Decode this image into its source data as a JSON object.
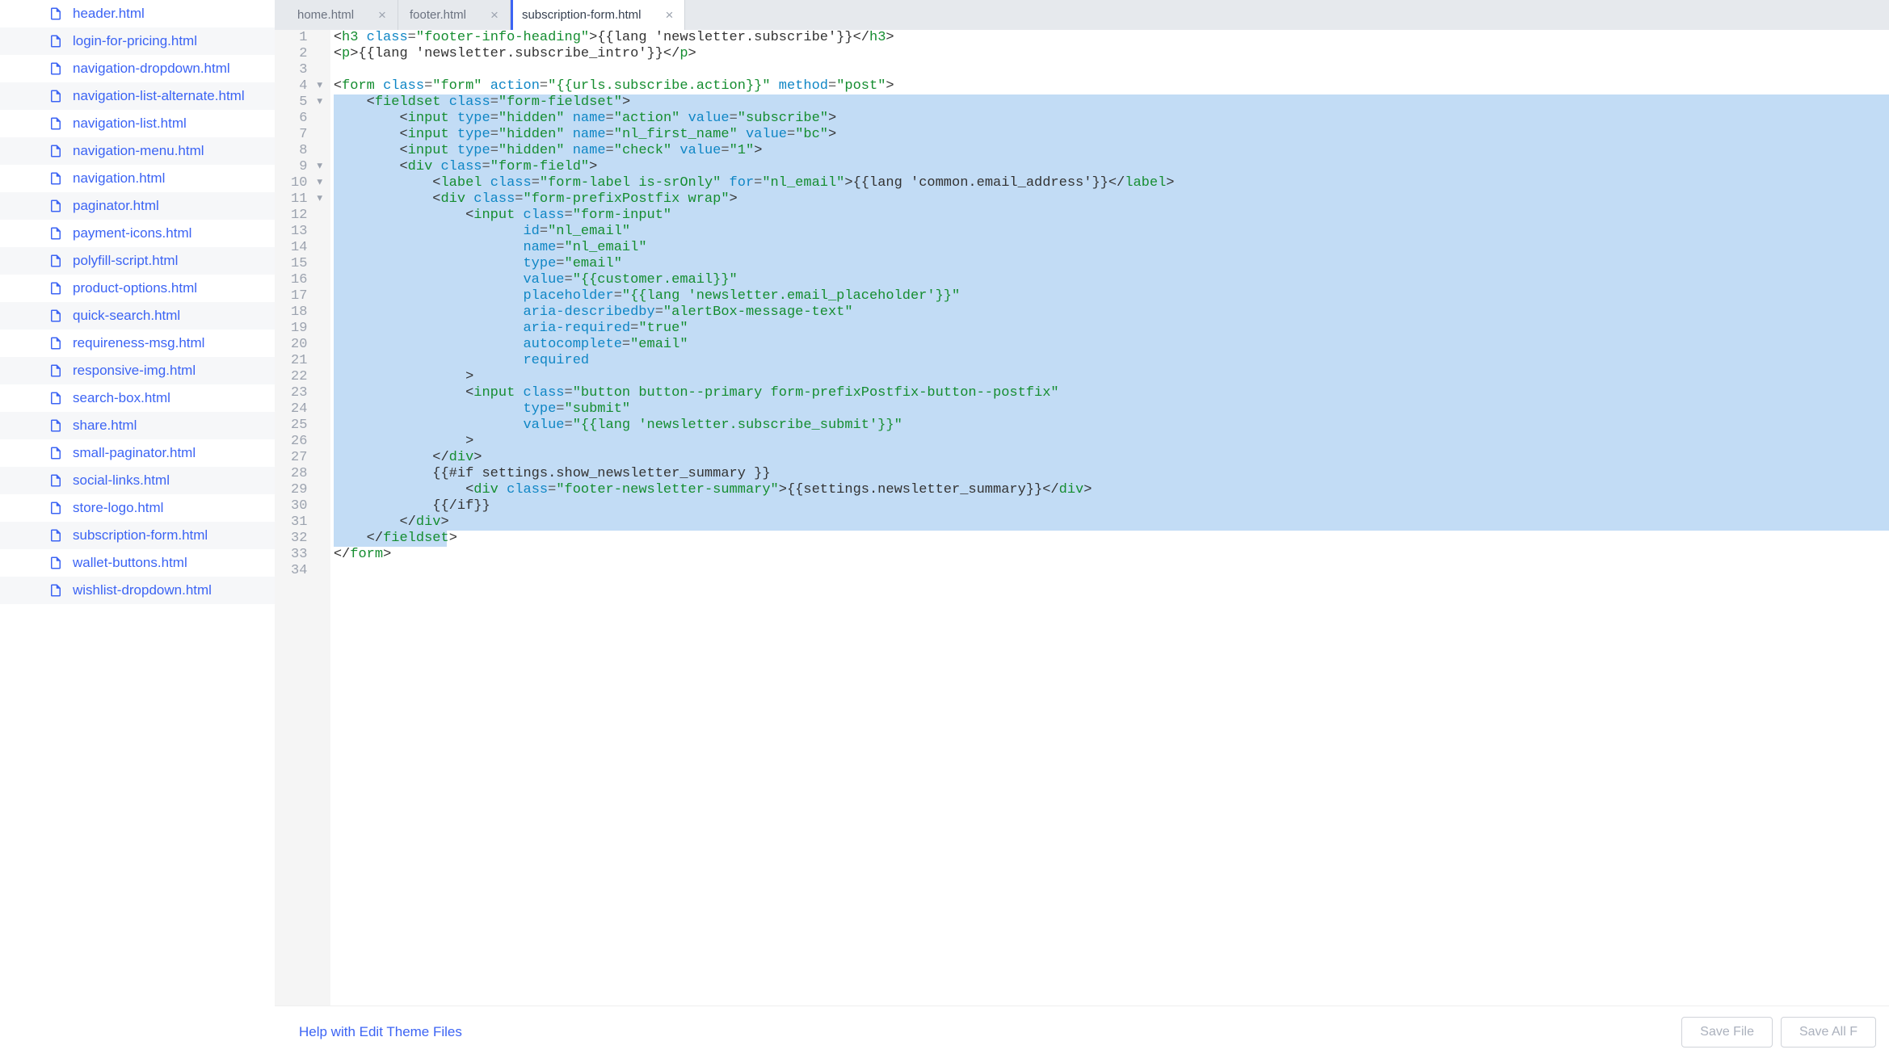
{
  "sidebar": {
    "items": [
      "header.html",
      "login-for-pricing.html",
      "navigation-dropdown.html",
      "navigation-list-alternate.html",
      "navigation-list.html",
      "navigation-menu.html",
      "navigation.html",
      "paginator.html",
      "payment-icons.html",
      "polyfill-script.html",
      "product-options.html",
      "quick-search.html",
      "requireness-msg.html",
      "responsive-img.html",
      "search-box.html",
      "share.html",
      "small-paginator.html",
      "social-links.html",
      "store-logo.html",
      "subscription-form.html",
      "wallet-buttons.html",
      "wishlist-dropdown.html"
    ]
  },
  "tabs": [
    {
      "label": "home.html",
      "active": false
    },
    {
      "label": "footer.html",
      "active": false
    },
    {
      "label": "subscription-form.html",
      "active": true
    }
  ],
  "editor": {
    "highlighted_start": 5,
    "highlighted_end": 32,
    "folds": {
      "4": true,
      "5": true,
      "9": true,
      "10": true,
      "11": true
    },
    "lines": [
      [
        {
          "t": "punct",
          "v": "<"
        },
        {
          "t": "tag",
          "v": "h3"
        },
        {
          "t": "txt",
          "v": " "
        },
        {
          "t": "attr",
          "v": "class"
        },
        {
          "t": "eq",
          "v": "="
        },
        {
          "t": "str",
          "v": "\"footer-info-heading\""
        },
        {
          "t": "punct",
          "v": ">"
        },
        {
          "t": "txt",
          "v": "{{lang 'newsletter.subscribe'}}"
        },
        {
          "t": "punct",
          "v": "</"
        },
        {
          "t": "tag",
          "v": "h3"
        },
        {
          "t": "punct",
          "v": ">"
        }
      ],
      [
        {
          "t": "punct",
          "v": "<"
        },
        {
          "t": "tag",
          "v": "p"
        },
        {
          "t": "punct",
          "v": ">"
        },
        {
          "t": "txt",
          "v": "{{lang 'newsletter.subscribe_intro'}}"
        },
        {
          "t": "punct",
          "v": "</"
        },
        {
          "t": "tag",
          "v": "p"
        },
        {
          "t": "punct",
          "v": ">"
        }
      ],
      [],
      [
        {
          "t": "punct",
          "v": "<"
        },
        {
          "t": "tag",
          "v": "form"
        },
        {
          "t": "txt",
          "v": " "
        },
        {
          "t": "attr",
          "v": "class"
        },
        {
          "t": "eq",
          "v": "="
        },
        {
          "t": "str",
          "v": "\"form\""
        },
        {
          "t": "txt",
          "v": " "
        },
        {
          "t": "attr",
          "v": "action"
        },
        {
          "t": "eq",
          "v": "="
        },
        {
          "t": "str",
          "v": "\"{{urls.subscribe.action}}\""
        },
        {
          "t": "txt",
          "v": " "
        },
        {
          "t": "attr",
          "v": "method"
        },
        {
          "t": "eq",
          "v": "="
        },
        {
          "t": "str",
          "v": "\"post\""
        },
        {
          "t": "punct",
          "v": ">"
        }
      ],
      [
        {
          "t": "txt",
          "v": "    "
        },
        {
          "t": "punct",
          "v": "<"
        },
        {
          "t": "tag",
          "v": "fieldset"
        },
        {
          "t": "txt",
          "v": " "
        },
        {
          "t": "attr",
          "v": "class"
        },
        {
          "t": "eq",
          "v": "="
        },
        {
          "t": "str",
          "v": "\"form-fieldset\""
        },
        {
          "t": "punct",
          "v": ">"
        }
      ],
      [
        {
          "t": "txt",
          "v": "        "
        },
        {
          "t": "punct",
          "v": "<"
        },
        {
          "t": "tag",
          "v": "input"
        },
        {
          "t": "txt",
          "v": " "
        },
        {
          "t": "attr",
          "v": "type"
        },
        {
          "t": "eq",
          "v": "="
        },
        {
          "t": "str",
          "v": "\"hidden\""
        },
        {
          "t": "txt",
          "v": " "
        },
        {
          "t": "attr",
          "v": "name"
        },
        {
          "t": "eq",
          "v": "="
        },
        {
          "t": "str",
          "v": "\"action\""
        },
        {
          "t": "txt",
          "v": " "
        },
        {
          "t": "attr",
          "v": "value"
        },
        {
          "t": "eq",
          "v": "="
        },
        {
          "t": "str",
          "v": "\"subscribe\""
        },
        {
          "t": "punct",
          "v": ">"
        }
      ],
      [
        {
          "t": "txt",
          "v": "        "
        },
        {
          "t": "punct",
          "v": "<"
        },
        {
          "t": "tag",
          "v": "input"
        },
        {
          "t": "txt",
          "v": " "
        },
        {
          "t": "attr",
          "v": "type"
        },
        {
          "t": "eq",
          "v": "="
        },
        {
          "t": "str",
          "v": "\"hidden\""
        },
        {
          "t": "txt",
          "v": " "
        },
        {
          "t": "attr",
          "v": "name"
        },
        {
          "t": "eq",
          "v": "="
        },
        {
          "t": "str",
          "v": "\"nl_first_name\""
        },
        {
          "t": "txt",
          "v": " "
        },
        {
          "t": "attr",
          "v": "value"
        },
        {
          "t": "eq",
          "v": "="
        },
        {
          "t": "str",
          "v": "\"bc\""
        },
        {
          "t": "punct",
          "v": ">"
        }
      ],
      [
        {
          "t": "txt",
          "v": "        "
        },
        {
          "t": "punct",
          "v": "<"
        },
        {
          "t": "tag",
          "v": "input"
        },
        {
          "t": "txt",
          "v": " "
        },
        {
          "t": "attr",
          "v": "type"
        },
        {
          "t": "eq",
          "v": "="
        },
        {
          "t": "str",
          "v": "\"hidden\""
        },
        {
          "t": "txt",
          "v": " "
        },
        {
          "t": "attr",
          "v": "name"
        },
        {
          "t": "eq",
          "v": "="
        },
        {
          "t": "str",
          "v": "\"check\""
        },
        {
          "t": "txt",
          "v": " "
        },
        {
          "t": "attr",
          "v": "value"
        },
        {
          "t": "eq",
          "v": "="
        },
        {
          "t": "str",
          "v": "\"1\""
        },
        {
          "t": "punct",
          "v": ">"
        }
      ],
      [
        {
          "t": "txt",
          "v": "        "
        },
        {
          "t": "punct",
          "v": "<"
        },
        {
          "t": "tag",
          "v": "div"
        },
        {
          "t": "txt",
          "v": " "
        },
        {
          "t": "attr",
          "v": "class"
        },
        {
          "t": "eq",
          "v": "="
        },
        {
          "t": "str",
          "v": "\"form-field\""
        },
        {
          "t": "punct",
          "v": ">"
        }
      ],
      [
        {
          "t": "txt",
          "v": "            "
        },
        {
          "t": "punct",
          "v": "<"
        },
        {
          "t": "tag",
          "v": "label"
        },
        {
          "t": "txt",
          "v": " "
        },
        {
          "t": "attr",
          "v": "class"
        },
        {
          "t": "eq",
          "v": "="
        },
        {
          "t": "str",
          "v": "\"form-label is-srOnly\""
        },
        {
          "t": "txt",
          "v": " "
        },
        {
          "t": "attr",
          "v": "for"
        },
        {
          "t": "eq",
          "v": "="
        },
        {
          "t": "str",
          "v": "\"nl_email\""
        },
        {
          "t": "punct",
          "v": ">"
        },
        {
          "t": "txt",
          "v": "{{lang 'common.email_address'}}"
        },
        {
          "t": "punct",
          "v": "</"
        },
        {
          "t": "tag",
          "v": "label"
        },
        {
          "t": "punct",
          "v": ">"
        }
      ],
      [
        {
          "t": "txt",
          "v": "            "
        },
        {
          "t": "punct",
          "v": "<"
        },
        {
          "t": "tag",
          "v": "div"
        },
        {
          "t": "txt",
          "v": " "
        },
        {
          "t": "attr",
          "v": "class"
        },
        {
          "t": "eq",
          "v": "="
        },
        {
          "t": "str",
          "v": "\"form-prefixPostfix wrap\""
        },
        {
          "t": "punct",
          "v": ">"
        }
      ],
      [
        {
          "t": "txt",
          "v": "                "
        },
        {
          "t": "punct",
          "v": "<"
        },
        {
          "t": "tag",
          "v": "input"
        },
        {
          "t": "txt",
          "v": " "
        },
        {
          "t": "attr",
          "v": "class"
        },
        {
          "t": "eq",
          "v": "="
        },
        {
          "t": "str",
          "v": "\"form-input\""
        }
      ],
      [
        {
          "t": "txt",
          "v": "                       "
        },
        {
          "t": "attr",
          "v": "id"
        },
        {
          "t": "eq",
          "v": "="
        },
        {
          "t": "str",
          "v": "\"nl_email\""
        }
      ],
      [
        {
          "t": "txt",
          "v": "                       "
        },
        {
          "t": "attr",
          "v": "name"
        },
        {
          "t": "eq",
          "v": "="
        },
        {
          "t": "str",
          "v": "\"nl_email\""
        }
      ],
      [
        {
          "t": "txt",
          "v": "                       "
        },
        {
          "t": "attr",
          "v": "type"
        },
        {
          "t": "eq",
          "v": "="
        },
        {
          "t": "str",
          "v": "\"email\""
        }
      ],
      [
        {
          "t": "txt",
          "v": "                       "
        },
        {
          "t": "attr",
          "v": "value"
        },
        {
          "t": "eq",
          "v": "="
        },
        {
          "t": "str",
          "v": "\"{{customer.email}}\""
        }
      ],
      [
        {
          "t": "txt",
          "v": "                       "
        },
        {
          "t": "attr",
          "v": "placeholder"
        },
        {
          "t": "eq",
          "v": "="
        },
        {
          "t": "str",
          "v": "\"{{lang 'newsletter.email_placeholder'}}\""
        }
      ],
      [
        {
          "t": "txt",
          "v": "                       "
        },
        {
          "t": "attr",
          "v": "aria-describedby"
        },
        {
          "t": "eq",
          "v": "="
        },
        {
          "t": "str",
          "v": "\"alertBox-message-text\""
        }
      ],
      [
        {
          "t": "txt",
          "v": "                       "
        },
        {
          "t": "attr",
          "v": "aria-required"
        },
        {
          "t": "eq",
          "v": "="
        },
        {
          "t": "str",
          "v": "\"true\""
        }
      ],
      [
        {
          "t": "txt",
          "v": "                       "
        },
        {
          "t": "attr",
          "v": "autocomplete"
        },
        {
          "t": "eq",
          "v": "="
        },
        {
          "t": "str",
          "v": "\"email\""
        }
      ],
      [
        {
          "t": "txt",
          "v": "                       "
        },
        {
          "t": "attr",
          "v": "required"
        }
      ],
      [
        {
          "t": "txt",
          "v": "                "
        },
        {
          "t": "punct",
          "v": ">"
        }
      ],
      [
        {
          "t": "txt",
          "v": "                "
        },
        {
          "t": "punct",
          "v": "<"
        },
        {
          "t": "tag",
          "v": "input"
        },
        {
          "t": "txt",
          "v": " "
        },
        {
          "t": "attr",
          "v": "class"
        },
        {
          "t": "eq",
          "v": "="
        },
        {
          "t": "str",
          "v": "\"button button--primary form-prefixPostfix-button--postfix\""
        }
      ],
      [
        {
          "t": "txt",
          "v": "                       "
        },
        {
          "t": "attr",
          "v": "type"
        },
        {
          "t": "eq",
          "v": "="
        },
        {
          "t": "str",
          "v": "\"submit\""
        }
      ],
      [
        {
          "t": "txt",
          "v": "                       "
        },
        {
          "t": "attr",
          "v": "value"
        },
        {
          "t": "eq",
          "v": "="
        },
        {
          "t": "str",
          "v": "\"{{lang 'newsletter.subscribe_submit'}}\""
        }
      ],
      [
        {
          "t": "txt",
          "v": "                "
        },
        {
          "t": "punct",
          "v": ">"
        }
      ],
      [
        {
          "t": "txt",
          "v": "            "
        },
        {
          "t": "punct",
          "v": "</"
        },
        {
          "t": "tag",
          "v": "div"
        },
        {
          "t": "punct",
          "v": ">"
        }
      ],
      [
        {
          "t": "txt",
          "v": "            {{#if settings.show_newsletter_summary }}"
        }
      ],
      [
        {
          "t": "txt",
          "v": "                "
        },
        {
          "t": "punct",
          "v": "<"
        },
        {
          "t": "tag",
          "v": "div"
        },
        {
          "t": "txt",
          "v": " "
        },
        {
          "t": "attr",
          "v": "class"
        },
        {
          "t": "eq",
          "v": "="
        },
        {
          "t": "str",
          "v": "\"footer-newsletter-summary\""
        },
        {
          "t": "punct",
          "v": ">"
        },
        {
          "t": "txt",
          "v": "{{settings.newsletter_summary}}"
        },
        {
          "t": "punct",
          "v": "</"
        },
        {
          "t": "tag",
          "v": "div"
        },
        {
          "t": "punct",
          "v": ">"
        }
      ],
      [
        {
          "t": "txt",
          "v": "            {{/if}}"
        }
      ],
      [
        {
          "t": "txt",
          "v": "        "
        },
        {
          "t": "punct",
          "v": "</"
        },
        {
          "t": "tag",
          "v": "div"
        },
        {
          "t": "punct",
          "v": ">"
        }
      ],
      [
        {
          "t": "txt",
          "v": "    "
        },
        {
          "t": "punct",
          "v": "</"
        },
        {
          "t": "tag",
          "v": "fieldset"
        },
        {
          "t": "punct",
          "v": ">"
        }
      ],
      [
        {
          "t": "punct",
          "v": "</"
        },
        {
          "t": "tag",
          "v": "form"
        },
        {
          "t": "punct",
          "v": ">"
        }
      ],
      []
    ]
  },
  "footer": {
    "help_link": "Help with Edit Theme Files",
    "save_file": "Save File",
    "save_all": "Save All F"
  },
  "colors": {
    "accent": "#3c64f4",
    "tag": "#158d30",
    "attr": "#0f86c5",
    "selection": "#c2dcf5"
  }
}
